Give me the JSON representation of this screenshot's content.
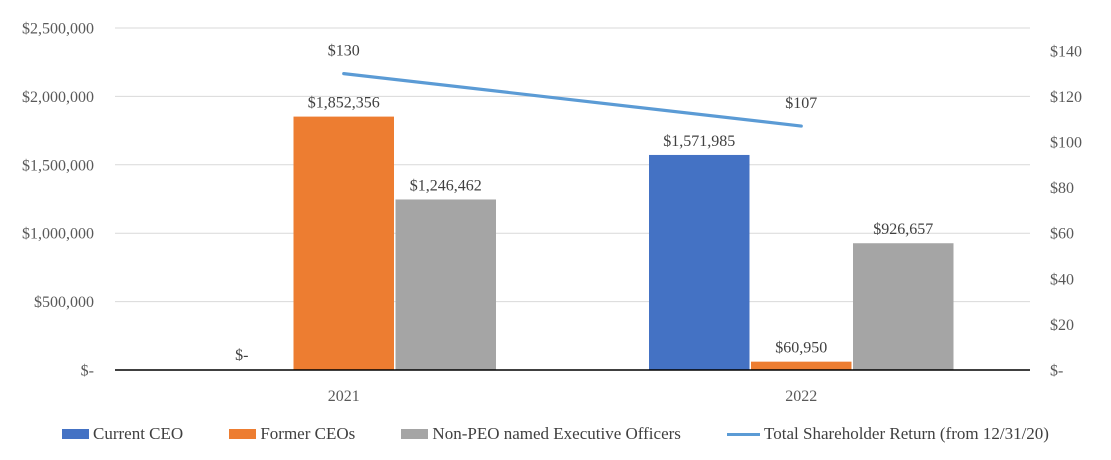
{
  "chart_data": {
    "type": "bar",
    "subtype": "clustered-bar-with-line-combo",
    "title": "",
    "categories": [
      "2021",
      "2022"
    ],
    "series": [
      {
        "name": "Current CEO",
        "kind": "bar",
        "axis": "left",
        "color": "#4472C4",
        "values": [
          0,
          1571985
        ],
        "data_labels": [
          "$-",
          "$1,571,985"
        ]
      },
      {
        "name": "Former CEOs",
        "kind": "bar",
        "axis": "left",
        "color": "#ED7D31",
        "values": [
          1852356,
          60950
        ],
        "data_labels": [
          "$1,852,356",
          "$60,950"
        ]
      },
      {
        "name": "Non-PEO named Executive Officers",
        "kind": "bar",
        "axis": "left",
        "color": "#A5A5A5",
        "values": [
          1246462,
          926657
        ],
        "data_labels": [
          "$1,246,462",
          "$926,657"
        ]
      },
      {
        "name": "Total Shareholder Return (from 12/31/20)",
        "kind": "line",
        "axis": "right",
        "color": "#5B9BD5",
        "values": [
          130,
          107
        ],
        "data_labels": [
          "$130",
          "$107"
        ]
      }
    ],
    "left_axis": {
      "min": 0,
      "max": 2500000,
      "tick_interval": 500000,
      "ticks": [
        {
          "value": 0,
          "label": "$-"
        },
        {
          "value": 500000,
          "label": "$500,000"
        },
        {
          "value": 1000000,
          "label": "$1,000,000"
        },
        {
          "value": 1500000,
          "label": "$1,500,000"
        },
        {
          "value": 2000000,
          "label": "$2,000,000"
        },
        {
          "value": 2500000,
          "label": "$2,500,000"
        }
      ]
    },
    "right_axis": {
      "min": 0,
      "max": 150,
      "tick_interval": 20,
      "ticks": [
        {
          "value": 0,
          "label": "$-"
        },
        {
          "value": 20,
          "label": "$20"
        },
        {
          "value": 40,
          "label": "$40"
        },
        {
          "value": 60,
          "label": "$60"
        },
        {
          "value": 80,
          "label": "$80"
        },
        {
          "value": 100,
          "label": "$100"
        },
        {
          "value": 120,
          "label": "$120"
        },
        {
          "value": 140,
          "label": "$140"
        }
      ]
    },
    "grid": true,
    "legend_position": "bottom",
    "style": {
      "axis_text_color": "#595959",
      "data_label_color": "#404040",
      "category_text_color": "#595959",
      "legend_text_color": "#404040",
      "gridline_color": "#D9D9D9",
      "axis_line_color": "#000000",
      "background": "#FFFFFF"
    }
  }
}
